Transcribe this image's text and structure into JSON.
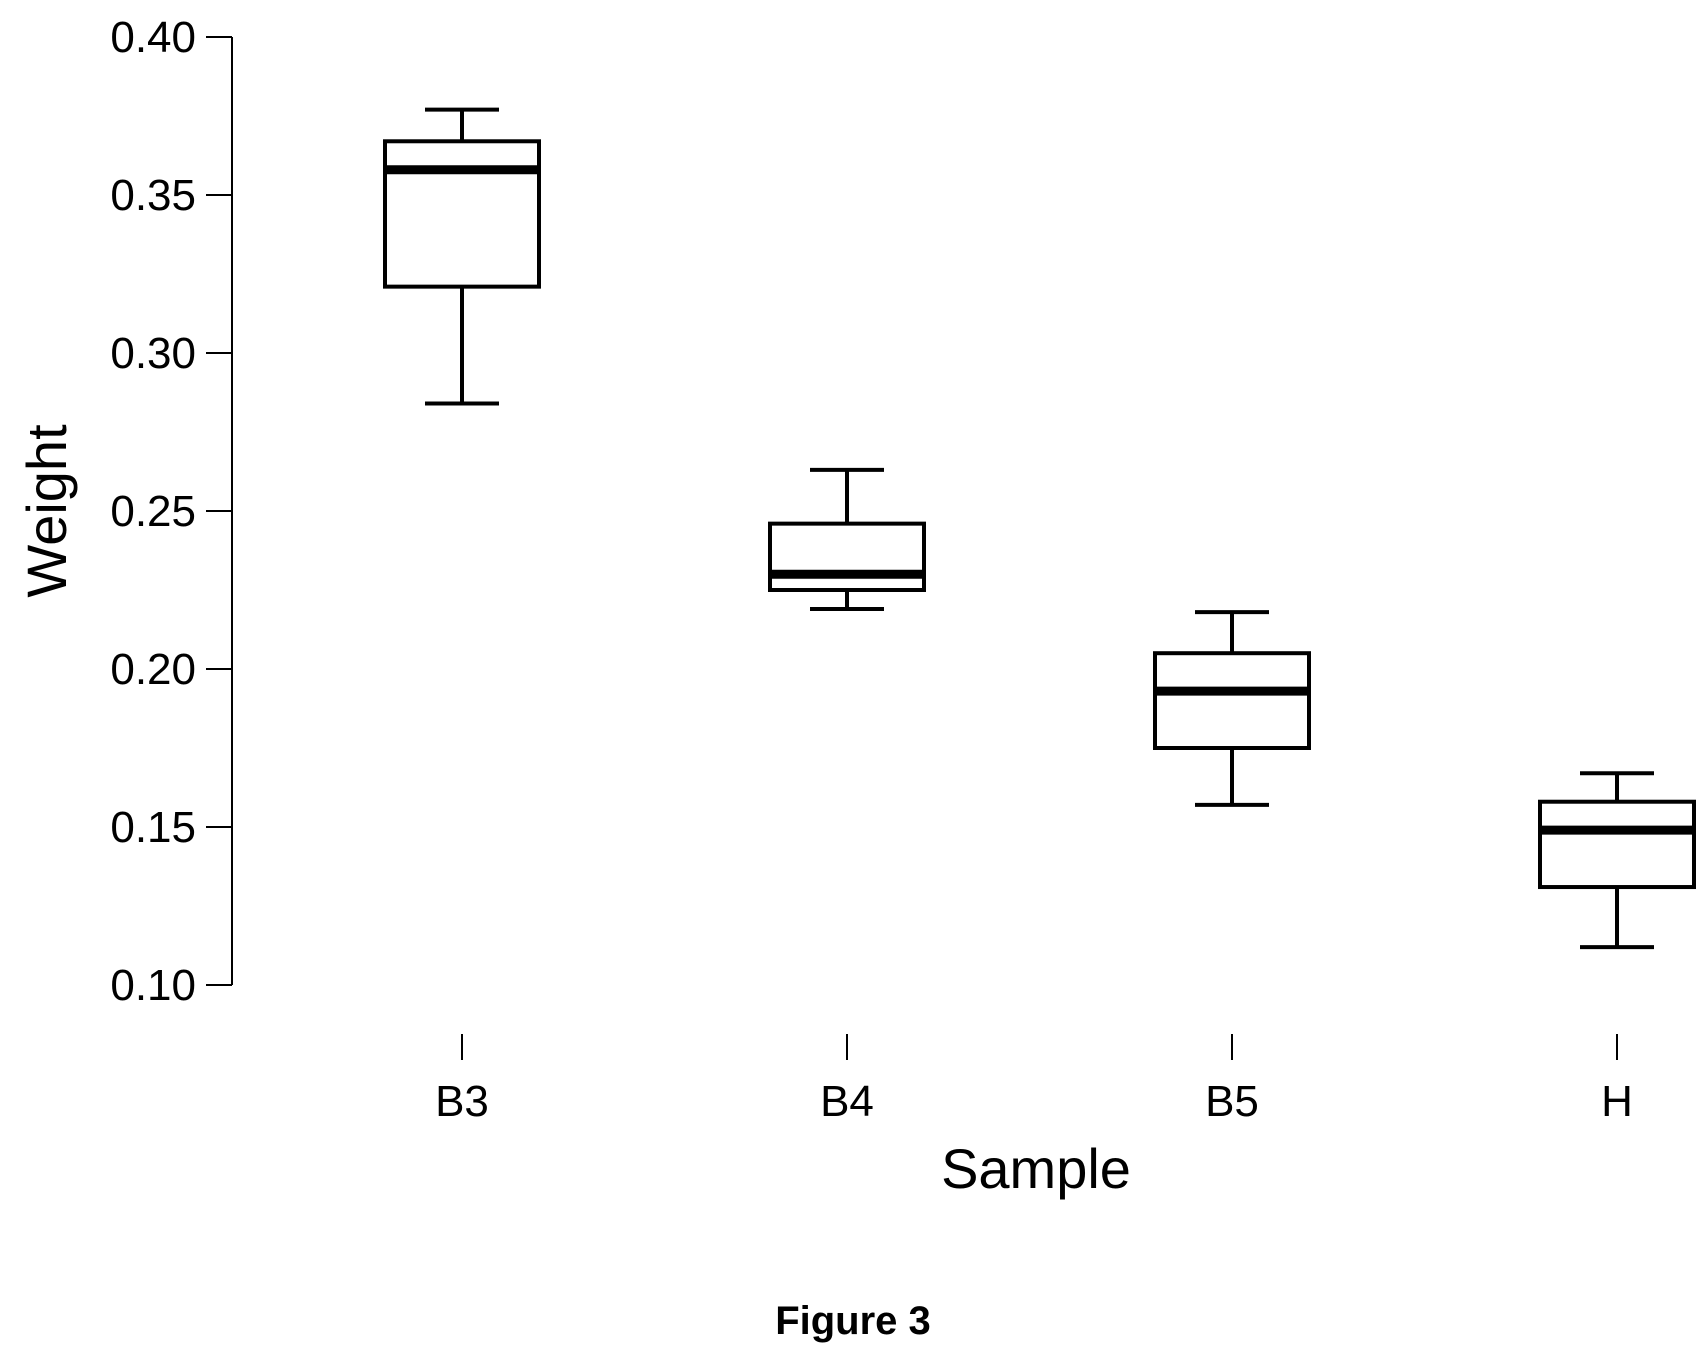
{
  "figure": {
    "caption": "Figure 3"
  },
  "chart_data": {
    "type": "boxplot",
    "title": "",
    "xlabel": "Sample",
    "ylabel": "Weight",
    "ylim": [
      0.1,
      0.4
    ],
    "yticks": [
      "0.10",
      "0.15",
      "0.20",
      "0.25",
      "0.30",
      "0.35",
      "0.40"
    ],
    "categories": [
      "B3",
      "B4",
      "B5",
      "H"
    ],
    "boxes": [
      {
        "category": "B3",
        "whisker_low": 0.284,
        "q1": 0.321,
        "median": 0.358,
        "q3": 0.367,
        "whisker_high": 0.377
      },
      {
        "category": "B4",
        "whisker_low": 0.219,
        "q1": 0.225,
        "median": 0.23,
        "q3": 0.246,
        "whisker_high": 0.263
      },
      {
        "category": "B5",
        "whisker_low": 0.157,
        "q1": 0.175,
        "median": 0.193,
        "q3": 0.205,
        "whisker_high": 0.218
      },
      {
        "category": "H",
        "whisker_low": 0.112,
        "q1": 0.131,
        "median": 0.149,
        "q3": 0.158,
        "whisker_high": 0.167
      }
    ],
    "grid": false,
    "legend": "none",
    "colors": {
      "stroke": "#000000",
      "background": "#ffffff"
    }
  }
}
